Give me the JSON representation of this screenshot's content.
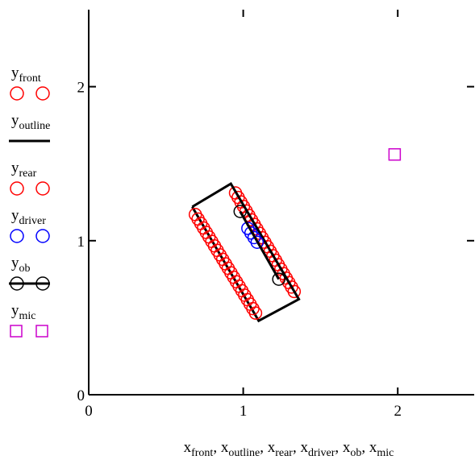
{
  "chart_data": {
    "type": "scatter",
    "xlim": [
      0,
      2.5
    ],
    "ylim": [
      0,
      2.5
    ],
    "xticks": [
      0,
      1,
      2
    ],
    "yticks": [
      0,
      1,
      2
    ],
    "x_tick_labels": [
      "0",
      "1",
      "2"
    ],
    "y_tick_labels": [
      "0",
      "1",
      "2"
    ],
    "grid": false,
    "legend_placement": "left",
    "xlabel_parts": [
      {
        "base": "x",
        "sub": "front",
        "sep": ", "
      },
      {
        "base": "x",
        "sub": "outline",
        "sep": ", "
      },
      {
        "base": "x",
        "sub": "rear",
        "sep": ", "
      },
      {
        "base": "x",
        "sub": "driver",
        "sep": ", "
      },
      {
        "base": "x",
        "sub": "ob",
        "sep": ", "
      },
      {
        "base": "x",
        "sub": "mic",
        "sep": ""
      }
    ],
    "series": [
      {
        "name": "front",
        "label_base": "y",
        "label_sub": "front",
        "marker": "circle",
        "line": false,
        "color": "#ff0000",
        "x_range": [
          0.95,
          1.33
        ],
        "y_range": [
          1.31,
          0.67
        ],
        "n": 23
      },
      {
        "name": "outline",
        "label_base": "y",
        "label_sub": "outline",
        "marker": "none",
        "line": true,
        "color": "#000000",
        "x": [
          0.67,
          0.92,
          1.36,
          1.1,
          0.67
        ],
        "y": [
          1.22,
          1.37,
          0.62,
          0.48,
          1.22
        ]
      },
      {
        "name": "rear",
        "label_base": "y",
        "label_sub": "rear",
        "marker": "circle",
        "line": false,
        "color": "#ff0000",
        "x_range": [
          0.69,
          1.08
        ],
        "y_range": [
          1.17,
          0.53
        ],
        "n": 23
      },
      {
        "name": "driver",
        "label_base": "y",
        "label_sub": "driver",
        "marker": "circle",
        "line": false,
        "color": "#0000ff",
        "x": [
          1.03,
          1.05,
          1.07,
          1.09
        ],
        "y": [
          1.08,
          1.05,
          1.02,
          0.99
        ]
      },
      {
        "name": "ob",
        "label_base": "y",
        "label_sub": "ob",
        "marker": "circle",
        "line": true,
        "color": "#000000",
        "x": [
          0.98,
          1.23
        ],
        "y": [
          1.19,
          0.75
        ]
      },
      {
        "name": "mic",
        "label_base": "y",
        "label_sub": "mic",
        "marker": "square",
        "line": false,
        "color": "#cc00cc",
        "x": [
          1.98
        ],
        "y": [
          1.56
        ]
      }
    ]
  }
}
